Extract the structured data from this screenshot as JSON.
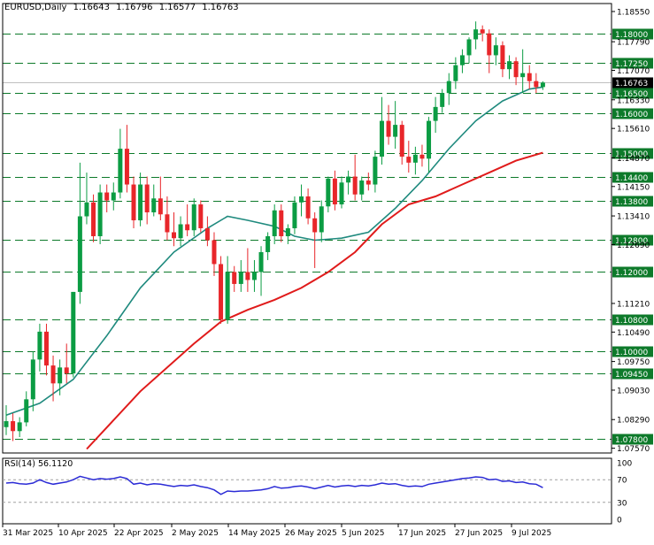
{
  "header": {
    "symbol": "EURUSD,Daily",
    "open": "1.16643",
    "high": "1.16796",
    "low": "1.16577",
    "close": "1.16763"
  },
  "rsi_header": {
    "label": "RSI(14)",
    "value": "56.1120"
  },
  "colors": {
    "bull": "#0b9c43",
    "bear": "#e8262a",
    "ma_fast": "#1f8a7e",
    "ma_slow": "#e01b1b",
    "level_line": "#0d7a2a",
    "level_label_bg": "#0d7a2a",
    "current_label_bg": "#000000",
    "rsi_line": "#2b2bd6"
  },
  "chart_data": [
    {
      "type": "candlestick",
      "title": "EURUSD,Daily",
      "ylim": [
        1.0745,
        1.1875
      ],
      "y_ticks": [
        "1.18550",
        "1.17790",
        "1.17070",
        "1.16330",
        "1.15610",
        "1.14870",
        "1.14150",
        "1.13410",
        "1.12690",
        "1.11210",
        "1.10490",
        "1.09750",
        "1.09030",
        "1.08290",
        "1.07570"
      ],
      "x_ticks": [
        "31 Mar 2025",
        "10 Apr 2025",
        "22 Apr 2025",
        "2 May 2025",
        "14 May 2025",
        "26 May 2025",
        "5 Jun 2025",
        "17 Jun 2025",
        "27 Jun 2025",
        "9 Jul 2025"
      ],
      "levels": [
        "1.18000",
        "1.17250",
        "1.16500",
        "1.16000",
        "1.15000",
        "1.14400",
        "1.13800",
        "1.12800",
        "1.12000",
        "1.10800",
        "1.10000",
        "1.09450",
        "1.07800"
      ],
      "current_price": "1.16763",
      "candles": [
        {
          "o": 1.081,
          "h": 1.0865,
          "l": 1.079,
          "c": 1.0825
        },
        {
          "o": 1.0825,
          "h": 1.0845,
          "l": 1.0775,
          "c": 1.08
        },
        {
          "o": 1.08,
          "h": 1.0835,
          "l": 1.0785,
          "c": 1.0822
        },
        {
          "o": 1.0822,
          "h": 1.09,
          "l": 1.0812,
          "c": 1.088
        },
        {
          "o": 1.088,
          "h": 1.1,
          "l": 1.085,
          "c": 1.098
        },
        {
          "o": 1.098,
          "h": 1.107,
          "l": 1.095,
          "c": 1.105
        },
        {
          "o": 1.105,
          "h": 1.107,
          "l": 1.094,
          "c": 1.0965
        },
        {
          "o": 1.0965,
          "h": 1.099,
          "l": 1.0875,
          "c": 1.092
        },
        {
          "o": 1.092,
          "h": 1.098,
          "l": 1.089,
          "c": 1.096
        },
        {
          "o": 1.096,
          "h": 1.102,
          "l": 1.092,
          "c": 1.0945
        },
        {
          "o": 1.0945,
          "h": 1.115,
          "l": 1.0935,
          "c": 1.115
        },
        {
          "o": 1.115,
          "h": 1.1475,
          "l": 1.112,
          "c": 1.134
        },
        {
          "o": 1.134,
          "h": 1.145,
          "l": 1.132,
          "c": 1.1375
        },
        {
          "o": 1.1375,
          "h": 1.1395,
          "l": 1.1275,
          "c": 1.129
        },
        {
          "o": 1.129,
          "h": 1.142,
          "l": 1.127,
          "c": 1.14
        },
        {
          "o": 1.14,
          "h": 1.142,
          "l": 1.135,
          "c": 1.138
        },
        {
          "o": 1.138,
          "h": 1.1425,
          "l": 1.1355,
          "c": 1.14
        },
        {
          "o": 1.14,
          "h": 1.156,
          "l": 1.1385,
          "c": 1.151
        },
        {
          "o": 1.151,
          "h": 1.157,
          "l": 1.14,
          "c": 1.142
        },
        {
          "o": 1.142,
          "h": 1.144,
          "l": 1.131,
          "c": 1.133
        },
        {
          "o": 1.133,
          "h": 1.145,
          "l": 1.1315,
          "c": 1.142
        },
        {
          "o": 1.142,
          "h": 1.144,
          "l": 1.132,
          "c": 1.135
        },
        {
          "o": 1.135,
          "h": 1.142,
          "l": 1.134,
          "c": 1.1385
        },
        {
          "o": 1.1385,
          "h": 1.144,
          "l": 1.133,
          "c": 1.1345
        },
        {
          "o": 1.1345,
          "h": 1.139,
          "l": 1.128,
          "c": 1.13
        },
        {
          "o": 1.13,
          "h": 1.135,
          "l": 1.1265,
          "c": 1.1285
        },
        {
          "o": 1.1285,
          "h": 1.134,
          "l": 1.1265,
          "c": 1.132
        },
        {
          "o": 1.132,
          "h": 1.137,
          "l": 1.129,
          "c": 1.1305
        },
        {
          "o": 1.1305,
          "h": 1.1385,
          "l": 1.129,
          "c": 1.137
        },
        {
          "o": 1.137,
          "h": 1.138,
          "l": 1.13,
          "c": 1.131
        },
        {
          "o": 1.131,
          "h": 1.134,
          "l": 1.1265,
          "c": 1.128
        },
        {
          "o": 1.128,
          "h": 1.13,
          "l": 1.119,
          "c": 1.122
        },
        {
          "o": 1.122,
          "h": 1.124,
          "l": 1.107,
          "c": 1.108
        },
        {
          "o": 1.108,
          "h": 1.124,
          "l": 1.107,
          "c": 1.12
        },
        {
          "o": 1.12,
          "h": 1.1215,
          "l": 1.115,
          "c": 1.117
        },
        {
          "o": 1.117,
          "h": 1.123,
          "l": 1.115,
          "c": 1.12
        },
        {
          "o": 1.12,
          "h": 1.126,
          "l": 1.115,
          "c": 1.118
        },
        {
          "o": 1.118,
          "h": 1.123,
          "l": 1.115,
          "c": 1.12
        },
        {
          "o": 1.12,
          "h": 1.1265,
          "l": 1.114,
          "c": 1.125
        },
        {
          "o": 1.125,
          "h": 1.13,
          "l": 1.123,
          "c": 1.129
        },
        {
          "o": 1.129,
          "h": 1.137,
          "l": 1.127,
          "c": 1.1355
        },
        {
          "o": 1.1355,
          "h": 1.137,
          "l": 1.1275,
          "c": 1.129
        },
        {
          "o": 1.129,
          "h": 1.132,
          "l": 1.127,
          "c": 1.131
        },
        {
          "o": 1.131,
          "h": 1.139,
          "l": 1.1295,
          "c": 1.1375
        },
        {
          "o": 1.1375,
          "h": 1.142,
          "l": 1.134,
          "c": 1.139
        },
        {
          "o": 1.139,
          "h": 1.141,
          "l": 1.132,
          "c": 1.1335
        },
        {
          "o": 1.1335,
          "h": 1.135,
          "l": 1.121,
          "c": 1.13
        },
        {
          "o": 1.13,
          "h": 1.138,
          "l": 1.1275,
          "c": 1.1365
        },
        {
          "o": 1.1365,
          "h": 1.144,
          "l": 1.135,
          "c": 1.1435
        },
        {
          "o": 1.1435,
          "h": 1.1455,
          "l": 1.1355,
          "c": 1.137
        },
        {
          "o": 1.137,
          "h": 1.144,
          "l": 1.136,
          "c": 1.1425
        },
        {
          "o": 1.1425,
          "h": 1.1455,
          "l": 1.1395,
          "c": 1.144
        },
        {
          "o": 1.144,
          "h": 1.1495,
          "l": 1.138,
          "c": 1.1395
        },
        {
          "o": 1.1395,
          "h": 1.144,
          "l": 1.138,
          "c": 1.143
        },
        {
          "o": 1.143,
          "h": 1.145,
          "l": 1.1405,
          "c": 1.142
        },
        {
          "o": 1.142,
          "h": 1.1505,
          "l": 1.14,
          "c": 1.149
        },
        {
          "o": 1.149,
          "h": 1.164,
          "l": 1.147,
          "c": 1.158
        },
        {
          "o": 1.158,
          "h": 1.162,
          "l": 1.152,
          "c": 1.154
        },
        {
          "o": 1.154,
          "h": 1.163,
          "l": 1.151,
          "c": 1.157
        },
        {
          "o": 1.157,
          "h": 1.158,
          "l": 1.147,
          "c": 1.149
        },
        {
          "o": 1.149,
          "h": 1.153,
          "l": 1.145,
          "c": 1.1475
        },
        {
          "o": 1.1475,
          "h": 1.1515,
          "l": 1.1445,
          "c": 1.1495
        },
        {
          "o": 1.1495,
          "h": 1.152,
          "l": 1.1465,
          "c": 1.1485
        },
        {
          "o": 1.1485,
          "h": 1.159,
          "l": 1.145,
          "c": 1.158
        },
        {
          "o": 1.158,
          "h": 1.164,
          "l": 1.155,
          "c": 1.1615
        },
        {
          "o": 1.1615,
          "h": 1.166,
          "l": 1.16,
          "c": 1.165
        },
        {
          "o": 1.165,
          "h": 1.17,
          "l": 1.162,
          "c": 1.168
        },
        {
          "o": 1.168,
          "h": 1.174,
          "l": 1.166,
          "c": 1.172
        },
        {
          "o": 1.172,
          "h": 1.176,
          "l": 1.17,
          "c": 1.1745
        },
        {
          "o": 1.1745,
          "h": 1.179,
          "l": 1.1725,
          "c": 1.1785
        },
        {
          "o": 1.1785,
          "h": 1.183,
          "l": 1.176,
          "c": 1.181
        },
        {
          "o": 1.181,
          "h": 1.182,
          "l": 1.178,
          "c": 1.18
        },
        {
          "o": 1.18,
          "h": 1.181,
          "l": 1.17,
          "c": 1.1745
        },
        {
          "o": 1.1745,
          "h": 1.179,
          "l": 1.172,
          "c": 1.177
        },
        {
          "o": 1.177,
          "h": 1.178,
          "l": 1.169,
          "c": 1.171
        },
        {
          "o": 1.171,
          "h": 1.1745,
          "l": 1.1685,
          "c": 1.173
        },
        {
          "o": 1.173,
          "h": 1.174,
          "l": 1.167,
          "c": 1.169
        },
        {
          "o": 1.169,
          "h": 1.176,
          "l": 1.165,
          "c": 1.17
        },
        {
          "o": 1.17,
          "h": 1.172,
          "l": 1.166,
          "c": 1.168
        },
        {
          "o": 1.168,
          "h": 1.17,
          "l": 1.165,
          "c": 1.1665
        },
        {
          "o": 1.1665,
          "h": 1.16796,
          "l": 1.16577,
          "c": 1.16763
        }
      ],
      "ma_fast": [
        [
          0,
          1.084
        ],
        [
          5,
          1.087
        ],
        [
          10,
          1.093
        ],
        [
          15,
          1.104
        ],
        [
          20,
          1.116
        ],
        [
          25,
          1.125
        ],
        [
          30,
          1.131
        ],
        [
          33,
          1.134
        ],
        [
          36,
          1.133
        ],
        [
          40,
          1.1315
        ],
        [
          43,
          1.129
        ],
        [
          46,
          1.128
        ],
        [
          50,
          1.1285
        ],
        [
          54,
          1.13
        ],
        [
          58,
          1.136
        ],
        [
          62,
          1.143
        ],
        [
          66,
          1.151
        ],
        [
          70,
          1.158
        ],
        [
          74,
          1.163
        ],
        [
          78,
          1.166
        ],
        [
          80,
          1.1665
        ]
      ],
      "ma_slow": [
        [
          12,
          1.0755
        ],
        [
          20,
          1.09
        ],
        [
          28,
          1.102
        ],
        [
          32,
          1.1075
        ],
        [
          36,
          1.1105
        ],
        [
          40,
          1.113
        ],
        [
          44,
          1.116
        ],
        [
          48,
          1.12
        ],
        [
          52,
          1.125
        ],
        [
          56,
          1.132
        ],
        [
          60,
          1.137
        ],
        [
          64,
          1.139
        ],
        [
          68,
          1.142
        ],
        [
          72,
          1.145
        ],
        [
          76,
          1.148
        ],
        [
          80,
          1.15
        ]
      ]
    },
    {
      "type": "line",
      "title": "RSI(14) 56.1120",
      "ylim": [
        0,
        100
      ],
      "y_ticks": [
        "100",
        "70",
        "30",
        "0"
      ],
      "values": [
        64,
        65,
        63,
        62,
        64,
        70,
        65,
        62,
        64,
        66,
        70,
        76,
        73,
        70,
        72,
        71,
        72,
        75,
        72,
        62,
        64,
        61,
        63,
        62,
        60,
        58,
        60,
        59,
        61,
        58,
        56,
        52,
        44,
        50,
        49,
        50,
        50,
        51,
        52,
        54,
        58,
        55,
        56,
        58,
        59,
        57,
        54,
        57,
        60,
        57,
        59,
        60,
        58,
        60,
        59,
        61,
        64,
        62,
        63,
        60,
        58,
        59,
        58,
        62,
        64,
        66,
        68,
        70,
        72,
        73,
        75,
        74,
        70,
        71,
        67,
        68,
        65,
        66,
        63,
        62,
        56
      ]
    }
  ]
}
